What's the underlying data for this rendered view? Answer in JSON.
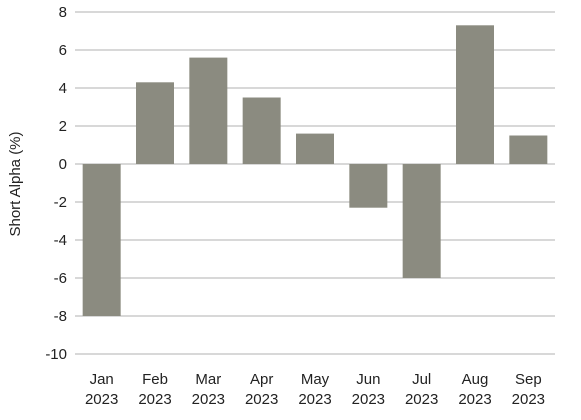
{
  "chart_data": {
    "type": "bar",
    "title": "",
    "xlabel": "",
    "ylabel": "Short Alpha (%)",
    "categories": [
      [
        "Jan",
        "2023"
      ],
      [
        "Feb",
        "2023"
      ],
      [
        "Mar",
        "2023"
      ],
      [
        "Apr",
        "2023"
      ],
      [
        "May",
        "2023"
      ],
      [
        "Jun",
        "2023"
      ],
      [
        "Jul",
        "2023"
      ],
      [
        "Aug",
        "2023"
      ],
      [
        "Sep",
        "2023"
      ]
    ],
    "values": [
      -8.0,
      4.3,
      5.6,
      3.5,
      1.6,
      -2.3,
      -6.0,
      7.3,
      1.5
    ],
    "ylim": [
      -10,
      8
    ],
    "yticks": [
      "-10",
      "-8",
      "-6",
      "-4",
      "-2",
      "0",
      "2",
      "4",
      "6",
      "8"
    ],
    "grid": true,
    "legend": "none",
    "bar_color": "#8b8b80",
    "grid_color": "#b0b0b0"
  }
}
